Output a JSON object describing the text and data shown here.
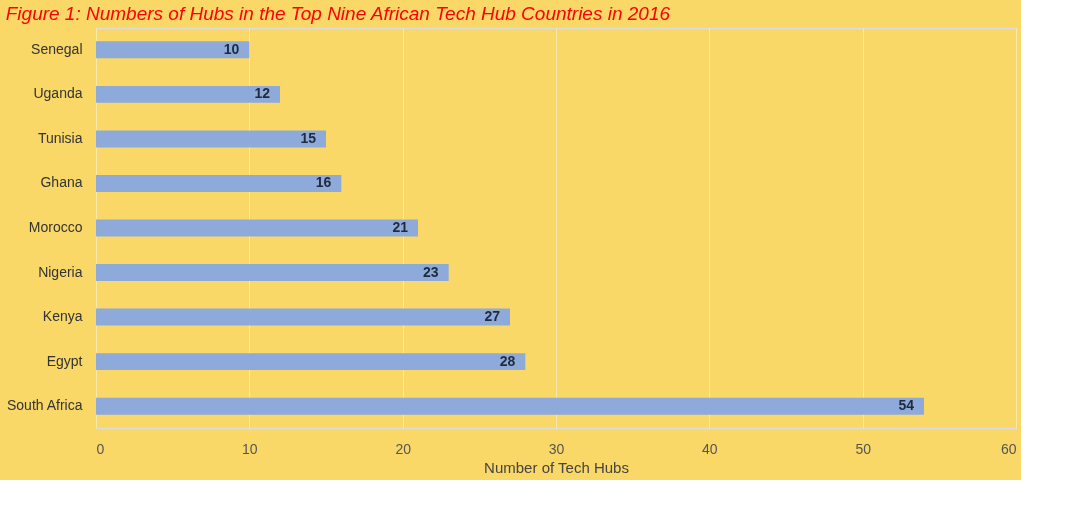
{
  "chart_data": {
    "type": "bar",
    "orientation": "horizontal",
    "title": "Figure 1: Numbers of Hubs in the Top Nine African Tech Hub Countries in 2016",
    "xlabel": "Number of Tech Hubs",
    "categories": [
      "Senegal",
      "Uganda",
      "Tunisia",
      "Ghana",
      "Morocco",
      "Nigeria",
      "Kenya",
      "Egypt",
      "South Africa"
    ],
    "values": [
      10,
      12,
      15,
      16,
      21,
      23,
      27,
      28,
      54
    ],
    "color": "#8eaadb",
    "xlim": [
      0,
      60
    ],
    "xticks": [
      0,
      10,
      20,
      30,
      40,
      50,
      60
    ],
    "grid": "x",
    "data_labels": true
  }
}
